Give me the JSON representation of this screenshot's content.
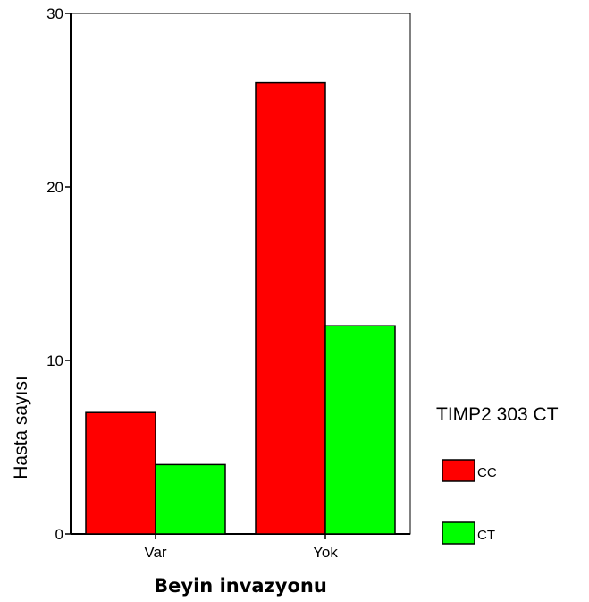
{
  "chart_data": {
    "type": "bar",
    "title": "",
    "xlabel": "Beyin invazyonu",
    "ylabel": "Hasta sayısı",
    "categories": [
      "Var",
      "Yok"
    ],
    "series": [
      {
        "name": "CC",
        "values": [
          7,
          26
        ],
        "color": "#ff0000"
      },
      {
        "name": "CT",
        "values": [
          4,
          12
        ],
        "color": "#00ff00"
      }
    ],
    "ylim": [
      0,
      30
    ],
    "yticks": [
      "0",
      "10",
      "20",
      "30"
    ],
    "grid": false,
    "legend": {
      "title": "TIMP2 303 CT",
      "position": "right"
    }
  }
}
